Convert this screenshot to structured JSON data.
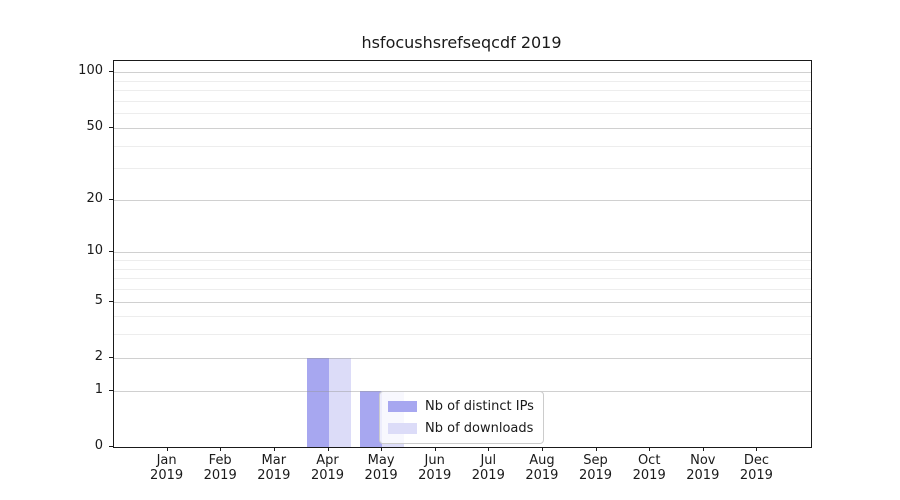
{
  "chart_data": {
    "type": "bar",
    "title": "hsfocushsrefseqcdf 2019",
    "categories": [
      "Jan",
      "Feb",
      "Mar",
      "Apr",
      "May",
      "Jun",
      "Jul",
      "Aug",
      "Sep",
      "Oct",
      "Nov",
      "Dec"
    ],
    "year": "2019",
    "series": [
      {
        "name": "Nb of distinct IPs",
        "color": "#a7a7f0",
        "values": [
          0,
          0,
          0,
          2,
          1,
          0,
          0,
          0,
          0,
          0,
          0,
          0
        ]
      },
      {
        "name": "Nb of downloads",
        "color": "#dcdcf8",
        "values": [
          0,
          0,
          0,
          2,
          1,
          0,
          0,
          0,
          0,
          0,
          0,
          0
        ]
      }
    ],
    "xlabel": "",
    "ylabel": "",
    "y_axis": {
      "scale": "log1p",
      "ylim": [
        0,
        115
      ],
      "major_ticks": [
        0,
        1,
        2,
        5,
        10,
        20,
        50,
        100
      ],
      "minor_ticks": [
        3,
        4,
        6,
        7,
        8,
        9,
        30,
        40,
        60,
        70,
        80,
        90
      ]
    },
    "grid": true,
    "legend_position": "lower center, inside plot"
  }
}
